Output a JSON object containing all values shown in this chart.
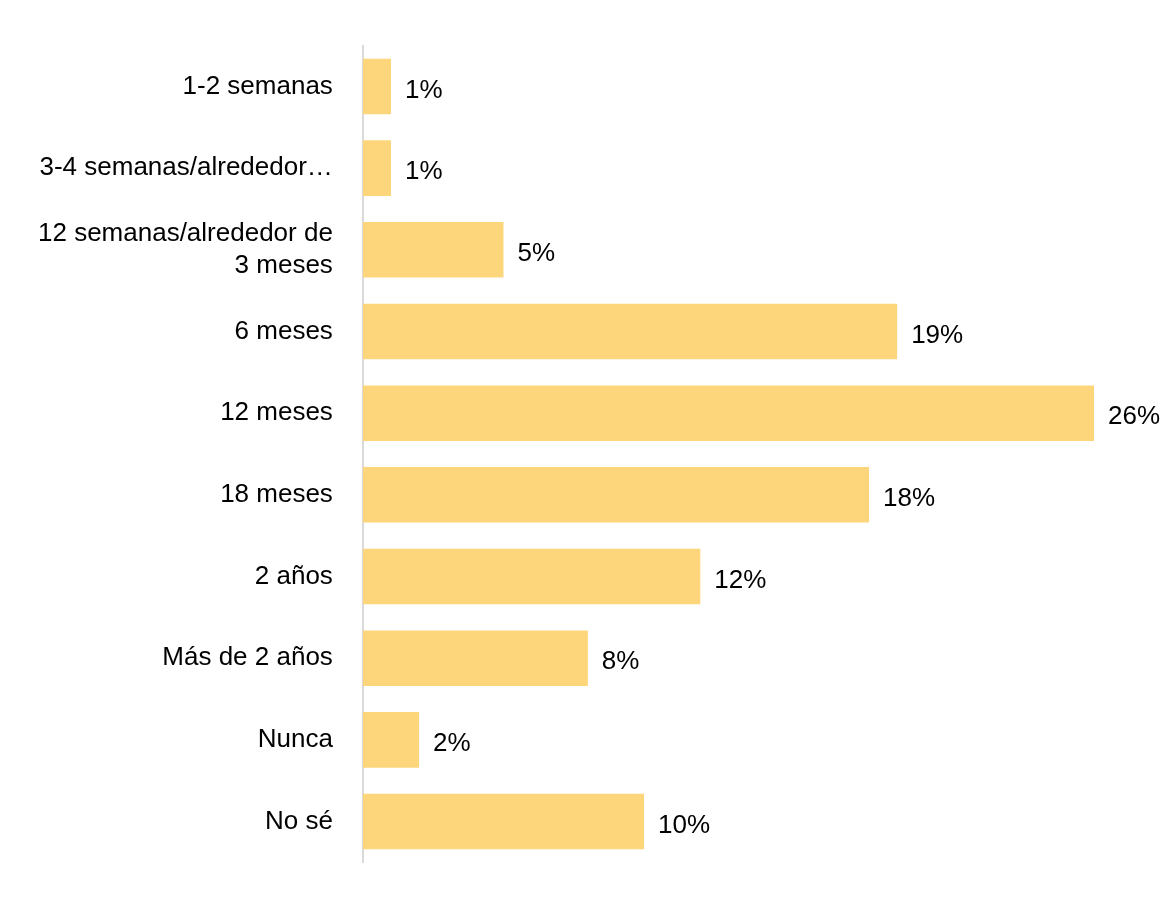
{
  "chart_data": {
    "type": "bar",
    "orientation": "horizontal",
    "categories": [
      "1-2 semanas",
      "3-4 semanas/alrededor…",
      "12 semanas/alrededor de 3 meses",
      "6 meses",
      "12 meses",
      "18 meses",
      "2 años",
      "Más de 2 años",
      "Nunca",
      "No sé"
    ],
    "values": [
      1,
      1,
      5,
      19,
      26,
      18,
      12,
      8,
      2,
      10
    ],
    "value_labels": [
      "1%",
      "1%",
      "5%",
      "19%",
      "26%",
      "18%",
      "12%",
      "8%",
      "2%",
      "10%"
    ],
    "color": "#fdd57a",
    "xlim": [
      0,
      26
    ],
    "tick_labels": "y",
    "grid": false,
    "legend": false
  }
}
